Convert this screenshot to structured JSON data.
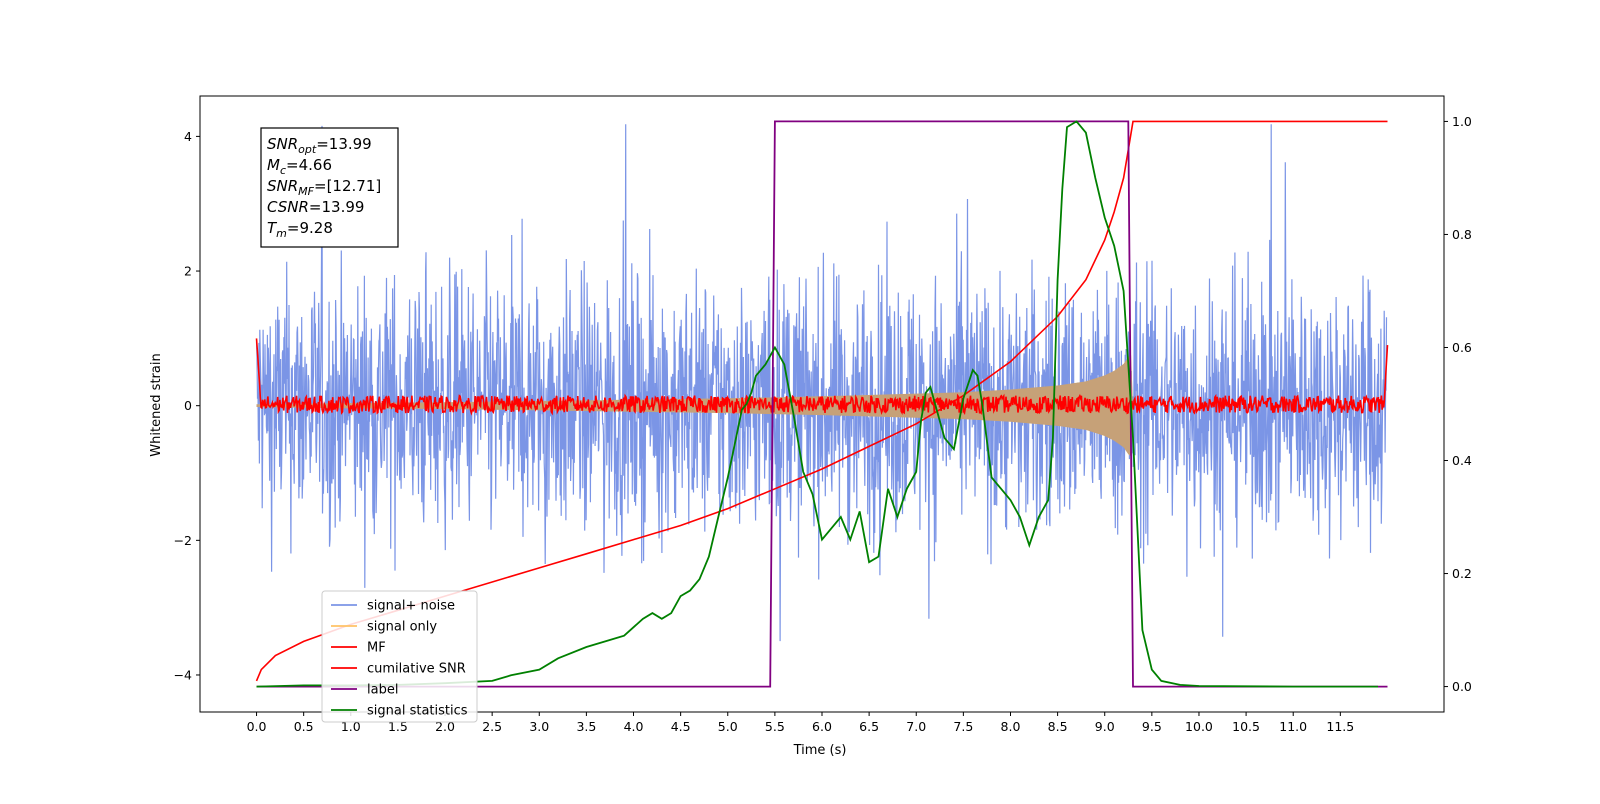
{
  "chart_data": {
    "type": "line",
    "xlabel": "Time (s)",
    "ylabel": "Whitened strain",
    "xlim": [
      -0.6,
      12.6
    ],
    "ylim": [
      -4.55,
      4.6
    ],
    "y2lim": [
      -0.045,
      1.045
    ],
    "x_ticks": [
      0.0,
      0.5,
      1.0,
      1.5,
      2.0,
      2.5,
      3.0,
      3.5,
      4.0,
      4.5,
      5.0,
      5.5,
      6.0,
      6.5,
      7.0,
      7.5,
      8.0,
      8.5,
      9.0,
      9.5,
      10.0,
      10.5,
      11.0,
      11.5
    ],
    "x_tick_labels": [
      "0.0",
      "0.5",
      "1.0",
      "1.5",
      "2.0",
      "2.5",
      "3.0",
      "3.5",
      "4.0",
      "4.5",
      "5.0",
      "5.5",
      "6.0",
      "6.5",
      "7.0",
      "7.5",
      "8.0",
      "8.5",
      "9.0",
      "9.5",
      "10.0",
      "10.5",
      "11.0",
      "11.5"
    ],
    "y_ticks": [
      -4,
      -2,
      0,
      2,
      4
    ],
    "y_tick_labels": [
      "−4",
      "−2",
      "0",
      "2",
      "4"
    ],
    "y2_ticks": [
      0.0,
      0.2,
      0.4,
      0.6,
      0.8,
      1.0
    ],
    "y2_tick_labels": [
      "0.0",
      "0.2",
      "0.4",
      "0.6",
      "0.8",
      "1.0"
    ],
    "grid": false,
    "legend_position": "lower-left",
    "annotation": [
      {
        "base": "SNR",
        "sub": "opt",
        "value": "=13.99"
      },
      {
        "base": "M",
        "sub": "c",
        "value": "=4.66"
      },
      {
        "base": "SNR",
        "sub": "MF",
        "value": "=[12.71]"
      },
      {
        "base": "CSNR",
        "sub": "",
        "value": "=13.99"
      },
      {
        "base": "T",
        "sub": "m",
        "value": "=9.28"
      }
    ],
    "series": [
      {
        "name": "signal+ noise",
        "axis": "left",
        "color": "#7b95e6",
        "style": "noise band, amplitude about ±3, spikes to ±4.2",
        "x_range": [
          0.0,
          11.99
        ]
      },
      {
        "name": "signal only",
        "axis": "left",
        "color": "#ffc266",
        "x": [
          0.0,
          0.5,
          1.0,
          2.0,
          3.0,
          4.0,
          5.0,
          6.0,
          7.0,
          7.5,
          8.0,
          8.5,
          8.8,
          9.0,
          9.1,
          9.2,
          9.25,
          9.28,
          9.3
        ],
        "amplitude": [
          0.02,
          0.03,
          0.04,
          0.05,
          0.07,
          0.09,
          0.11,
          0.14,
          0.18,
          0.2,
          0.24,
          0.3,
          0.36,
          0.45,
          0.52,
          0.62,
          0.72,
          0.75,
          0.0
        ]
      },
      {
        "name": "MF",
        "axis": "left",
        "color": "#ff0000",
        "style": "noise about ±0.15, edge spike to 1.0 at t=0 and 0.9 at t=12"
      },
      {
        "name": "cumilative SNR",
        "axis": "right",
        "color": "#ff0000",
        "x": [
          0.0,
          0.05,
          0.2,
          0.5,
          1.0,
          1.5,
          2.0,
          2.5,
          3.0,
          3.5,
          4.0,
          4.5,
          5.0,
          5.5,
          6.0,
          6.5,
          7.0,
          7.5,
          8.0,
          8.5,
          8.8,
          9.0,
          9.1,
          9.2,
          9.25,
          9.3,
          10.0,
          11.0,
          12.0
        ],
        "values": [
          0.01,
          0.03,
          0.055,
          0.08,
          0.11,
          0.135,
          0.16,
          0.185,
          0.21,
          0.235,
          0.26,
          0.285,
          0.315,
          0.35,
          0.385,
          0.425,
          0.465,
          0.515,
          0.575,
          0.655,
          0.72,
          0.79,
          0.84,
          0.9,
          0.95,
          1.0,
          1.0,
          1.0,
          1.0
        ]
      },
      {
        "name": "label",
        "axis": "right",
        "color": "#800080",
        "x": [
          0.0,
          5.45,
          5.5,
          9.25,
          9.3,
          12.0
        ],
        "values": [
          0.0,
          0.0,
          1.0,
          1.0,
          0.0,
          0.0
        ]
      },
      {
        "name": "signal statistics",
        "axis": "right",
        "color": "#008000",
        "x": [
          0.0,
          0.5,
          1.0,
          1.5,
          2.0,
          2.5,
          2.7,
          3.0,
          3.2,
          3.5,
          3.7,
          3.9,
          4.1,
          4.2,
          4.3,
          4.4,
          4.5,
          4.6,
          4.7,
          4.8,
          4.9,
          5.0,
          5.1,
          5.15,
          5.2,
          5.25,
          5.3,
          5.4,
          5.5,
          5.6,
          5.7,
          5.8,
          5.9,
          6.0,
          6.1,
          6.2,
          6.3,
          6.4,
          6.5,
          6.6,
          6.7,
          6.8,
          6.9,
          7.0,
          7.05,
          7.1,
          7.15,
          7.2,
          7.3,
          7.4,
          7.5,
          7.6,
          7.65,
          7.7,
          7.8,
          7.9,
          8.0,
          8.1,
          8.2,
          8.3,
          8.4,
          8.45,
          8.5,
          8.55,
          8.6,
          8.7,
          8.8,
          8.9,
          9.0,
          9.1,
          9.2,
          9.3,
          9.4,
          9.5,
          9.6,
          9.8,
          10.0,
          11.0,
          11.9
        ],
        "values": [
          0.0,
          0.002,
          0.002,
          0.003,
          0.006,
          0.01,
          0.02,
          0.03,
          0.05,
          0.07,
          0.08,
          0.09,
          0.12,
          0.13,
          0.12,
          0.13,
          0.16,
          0.17,
          0.19,
          0.23,
          0.3,
          0.37,
          0.45,
          0.49,
          0.5,
          0.52,
          0.55,
          0.57,
          0.6,
          0.57,
          0.48,
          0.38,
          0.34,
          0.26,
          0.28,
          0.3,
          0.26,
          0.31,
          0.22,
          0.23,
          0.35,
          0.3,
          0.35,
          0.38,
          0.47,
          0.52,
          0.53,
          0.5,
          0.44,
          0.42,
          0.51,
          0.56,
          0.55,
          0.5,
          0.37,
          0.35,
          0.33,
          0.3,
          0.25,
          0.3,
          0.33,
          0.44,
          0.72,
          0.88,
          0.99,
          1.0,
          0.98,
          0.9,
          0.83,
          0.78,
          0.7,
          0.44,
          0.1,
          0.03,
          0.01,
          0.003,
          0.001,
          0.0,
          0.0
        ]
      }
    ]
  }
}
